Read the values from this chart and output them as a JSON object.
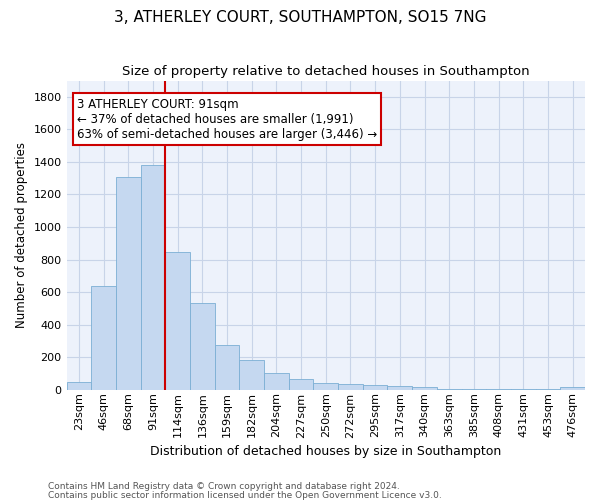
{
  "title": "3, ATHERLEY COURT, SOUTHAMPTON, SO15 7NG",
  "subtitle": "Size of property relative to detached houses in Southampton",
  "xlabel": "Distribution of detached houses by size in Southampton",
  "ylabel": "Number of detached properties",
  "bins": [
    "23sqm",
    "46sqm",
    "68sqm",
    "91sqm",
    "114sqm",
    "136sqm",
    "159sqm",
    "182sqm",
    "204sqm",
    "227sqm",
    "250sqm",
    "272sqm",
    "295sqm",
    "317sqm",
    "340sqm",
    "363sqm",
    "385sqm",
    "408sqm",
    "431sqm",
    "453sqm",
    "476sqm"
  ],
  "values": [
    50,
    640,
    1310,
    1380,
    845,
    530,
    275,
    185,
    105,
    65,
    40,
    35,
    30,
    20,
    15,
    5,
    5,
    5,
    5,
    5,
    15
  ],
  "bar_color": "#c5d8f0",
  "bar_edge_color": "#7bafd4",
  "vline_color": "#cc0000",
  "annotation_line1": "3 ATHERLEY COURT: 91sqm",
  "annotation_line2": "← 37% of detached houses are smaller (1,991)",
  "annotation_line3": "63% of semi-detached houses are larger (3,446) →",
  "annotation_box_color": "#ffffff",
  "annotation_box_edge": "#cc0000",
  "ylim": [
    0,
    1900
  ],
  "yticks": [
    0,
    200,
    400,
    600,
    800,
    1000,
    1200,
    1400,
    1600,
    1800
  ],
  "footer1": "Contains HM Land Registry data © Crown copyright and database right 2024.",
  "footer2": "Contains public sector information licensed under the Open Government Licence v3.0.",
  "bg_color": "#edf2fb",
  "grid_color": "#c8d4e8",
  "title_fontsize": 11,
  "subtitle_fontsize": 9.5,
  "tick_fontsize": 8,
  "ylabel_fontsize": 8.5,
  "xlabel_fontsize": 9,
  "annot_fontsize": 8.5,
  "vline_index": 3
}
